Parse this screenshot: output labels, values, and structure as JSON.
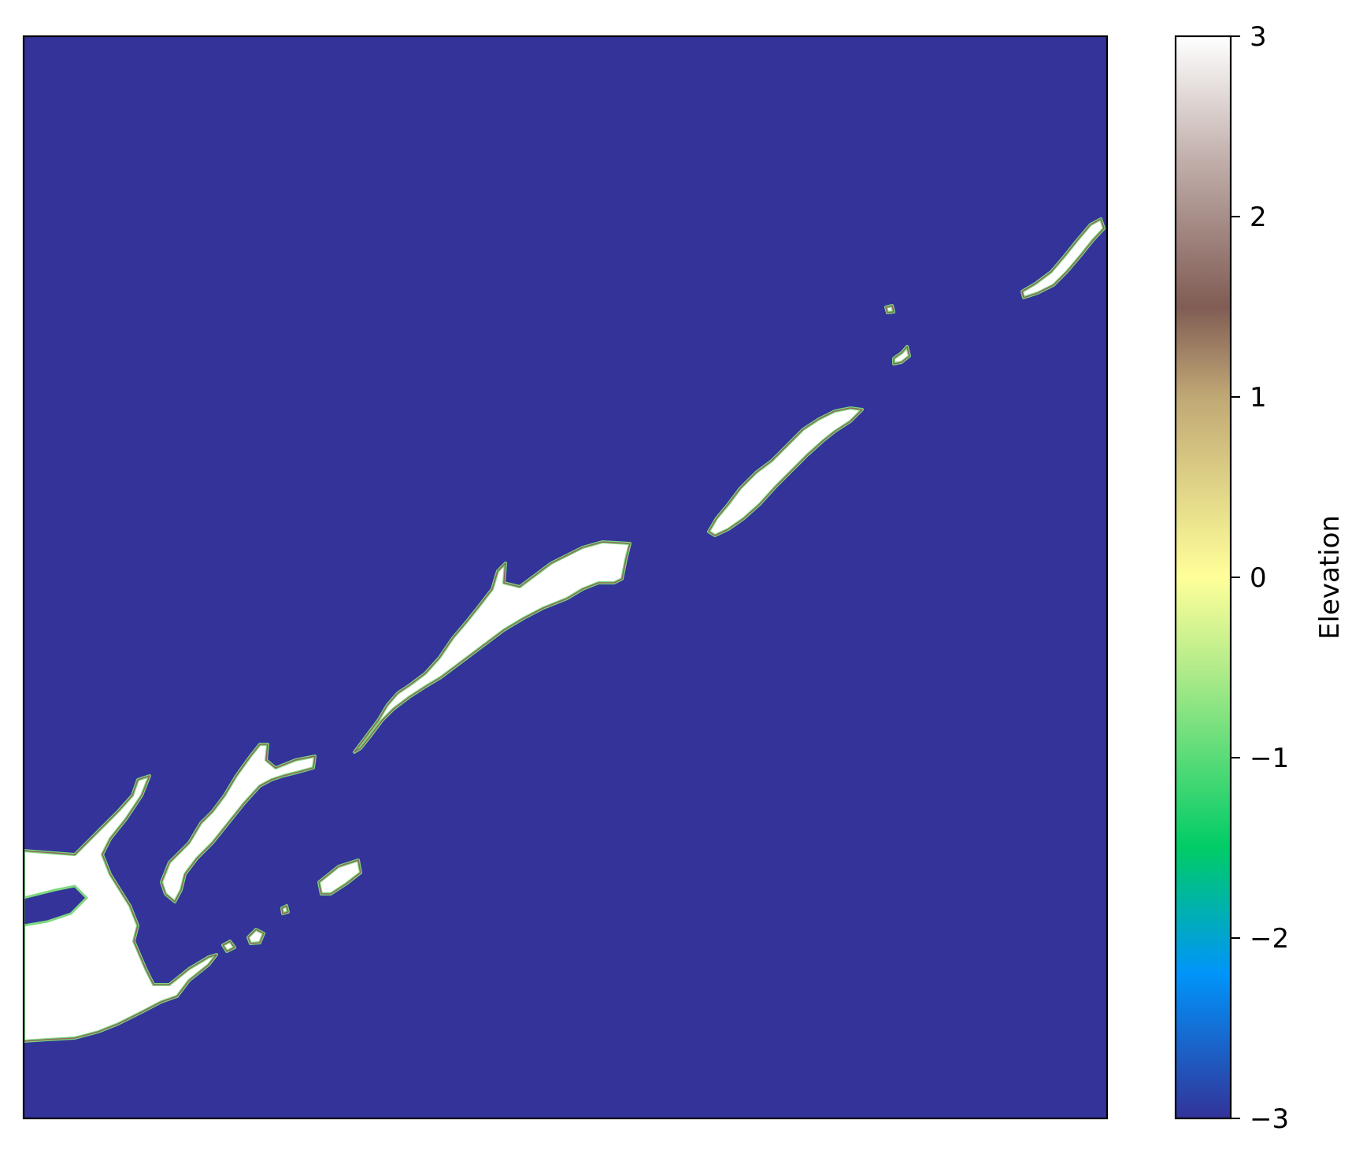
{
  "colorbar": {
    "label": "Elevation",
    "ticks": [
      {
        "value": 3,
        "label": "3"
      },
      {
        "value": 2,
        "label": "2"
      },
      {
        "value": 1,
        "label": "1"
      },
      {
        "value": 0,
        "label": "0"
      },
      {
        "value": -1,
        "label": "−1"
      },
      {
        "value": -2,
        "label": "−2"
      },
      {
        "value": -3,
        "label": "−3"
      }
    ],
    "range": [
      -3,
      3
    ],
    "colormap": "terrain",
    "stops": [
      {
        "value": -3.0,
        "color": "#333399"
      },
      {
        "value": -2.2,
        "color": "#0094fa"
      },
      {
        "value": -1.5,
        "color": "#00cc66"
      },
      {
        "value": -0.5,
        "color": "#b3eb8a"
      },
      {
        "value": 0.0,
        "color": "#ffff99"
      },
      {
        "value": 1.0,
        "color": "#c0a875"
      },
      {
        "value": 1.5,
        "color": "#805c54"
      },
      {
        "value": 2.3,
        "color": "#c0ada9"
      },
      {
        "value": 3.0,
        "color": "#ffffff"
      }
    ]
  },
  "map": {
    "background_value": -3,
    "land_value": 3,
    "ocean_color": "#333399",
    "land_color": "#ffffff",
    "coast_color": "#7fd97f",
    "ridge_color": "#8a6a5a"
  }
}
